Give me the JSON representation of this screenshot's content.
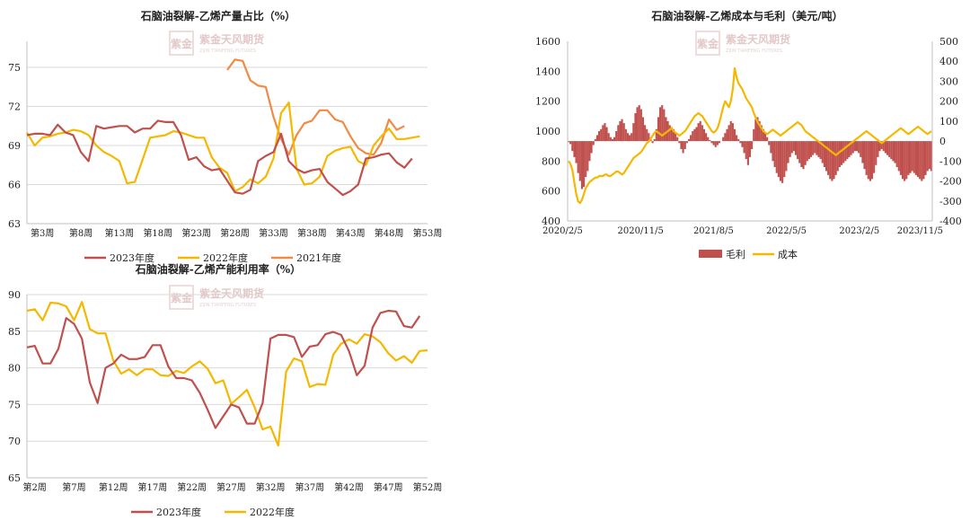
{
  "watermark": {
    "brand": "紫金天风期货",
    "sub": "ZIJIN TIANFENG FUTURES",
    "seal": "紫金"
  },
  "colors": {
    "c2023": "#c0504d",
    "c2022": "#f5b800",
    "c2021": "#f08a45",
    "profit": "#c0504d",
    "cost": "#f5b800",
    "grid": "#d9d9d9"
  },
  "chart_data": [
    {
      "type": "line",
      "title": "石脑油裂解-乙烯产量占比（%）",
      "ylim": [
        63,
        77
      ],
      "yticks": [
        "63",
        "66",
        "69",
        "72",
        "75"
      ],
      "ytick_values": [
        63,
        66,
        69,
        72,
        75
      ],
      "xlim": [
        1,
        53
      ],
      "xtick_labels": [
        "第3周",
        "第8周",
        "第13周",
        "第18周",
        "第23周",
        "第28周",
        "第33周",
        "第38周",
        "第43周",
        "第48周",
        "第53周"
      ],
      "xtick_values": [
        3,
        8,
        13,
        18,
        23,
        28,
        33,
        38,
        43,
        48,
        53
      ],
      "series": [
        {
          "name": "2023年度",
          "color_key": "c2023",
          "x_start": 1,
          "values": [
            69.8,
            69.9,
            69.9,
            69.8,
            70.6,
            70.0,
            69.8,
            68.5,
            67.8,
            70.5,
            70.3,
            70.4,
            70.5,
            70.5,
            70.0,
            70.3,
            70.3,
            70.9,
            70.8,
            70.8,
            69.8,
            67.9,
            68.1,
            67.4,
            67.1,
            67.2,
            66.3,
            65.4,
            65.3,
            65.6,
            67.8,
            68.2,
            68.5,
            69.9,
            67.8,
            67.2,
            66.9,
            67.1,
            67.2,
            66.2,
            65.7,
            65.2,
            65.5,
            66.0,
            68.0,
            68.1,
            68.3,
            68.4,
            67.7,
            67.3,
            68.0
          ]
        },
        {
          "name": "2022年度",
          "color_key": "c2022",
          "x_start": 1,
          "values": [
            70.0,
            69.0,
            69.6,
            69.7,
            69.9,
            70.0,
            70.2,
            70.1,
            69.8,
            69.0,
            68.5,
            68.2,
            67.8,
            66.1,
            66.2,
            67.9,
            69.6,
            69.7,
            69.8,
            70.1,
            70.0,
            69.8,
            69.6,
            69.6,
            68.1,
            67.3,
            66.9,
            65.5,
            65.8,
            66.4,
            66.1,
            66.6,
            68.0,
            71.5,
            72.3,
            67.2,
            66.0,
            66.1,
            66.6,
            68.2,
            68.6,
            68.8,
            68.9,
            67.8,
            67.5,
            69.0,
            69.7,
            70.3,
            69.5,
            69.5,
            69.6,
            69.7
          ]
        },
        {
          "name": "2021年度",
          "color_key": "c2021",
          "x_start": 27,
          "values": [
            74.8,
            75.6,
            75.5,
            74.0,
            73.6,
            73.5,
            71.2,
            69.5,
            68.3,
            69.8,
            70.7,
            70.9,
            71.7,
            71.7,
            71.0,
            70.8,
            69.7,
            68.8,
            68.4,
            68.3,
            69.2,
            71.0,
            70.2,
            70.5
          ]
        }
      ],
      "legend": [
        "2023年度",
        "2022年度",
        "2021年度"
      ],
      "legend_position": "bottom"
    },
    {
      "type": "bar+line",
      "title": "石脑油裂解-乙烯成本与毛利（美元/吨）",
      "left_axis": {
        "label": "成本",
        "ylim": [
          400,
          1600
        ],
        "yticks": [
          "400",
          "600",
          "800",
          "1000",
          "1200",
          "1400",
          "1600"
        ],
        "ytick_values": [
          400,
          600,
          800,
          1000,
          1200,
          1400,
          1600
        ]
      },
      "right_axis": {
        "label": "毛利",
        "ylim": [
          -400,
          500
        ],
        "yticks": [
          "-400",
          "-300",
          "-200",
          "-100",
          "0",
          "100",
          "200",
          "300",
          "400",
          "500"
        ],
        "ytick_values": [
          -400,
          -300,
          -200,
          -100,
          0,
          100,
          200,
          300,
          400,
          500
        ]
      },
      "xtick_labels": [
        "2020/2/5",
        "2020/11/5",
        "2021/8/5",
        "2022/5/5",
        "2023/2/5",
        "2023/11/5"
      ],
      "x_start": "2020/2/5",
      "x_step": "week",
      "series": [
        {
          "name": "毛利",
          "type": "bar",
          "axis": "right",
          "color_key": "profit",
          "values": [
            -5,
            -15,
            -50,
            -80,
            -110,
            -160,
            -200,
            -240,
            -230,
            -180,
            -150,
            -100,
            -60,
            -20,
            10,
            30,
            50,
            60,
            80,
            90,
            70,
            40,
            20,
            10,
            20,
            50,
            80,
            100,
            110,
            90,
            60,
            40,
            30,
            40,
            90,
            140,
            170,
            180,
            160,
            120,
            80,
            60,
            40,
            10,
            -10,
            10,
            60,
            120,
            170,
            180,
            160,
            120,
            100,
            80,
            70,
            60,
            40,
            20,
            -10,
            -40,
            -60,
            -40,
            -10,
            10,
            30,
            50,
            60,
            70,
            90,
            100,
            80,
            60,
            40,
            20,
            5,
            -10,
            -20,
            -30,
            -20,
            -10,
            0,
            20,
            40,
            60,
            80,
            100,
            90,
            60,
            30,
            10,
            -10,
            -30,
            -60,
            -90,
            -120,
            -80,
            -40,
            60,
            110,
            120,
            100,
            80,
            60,
            40,
            20,
            -20,
            -60,
            -100,
            -130,
            -160,
            -180,
            -200,
            -210,
            -180,
            -150,
            -110,
            -80,
            -60,
            -50,
            -70,
            -90,
            -110,
            -130,
            -140,
            -120,
            -100,
            -90,
            -80,
            -70,
            -60,
            -70,
            -80,
            -90,
            -110,
            -130,
            -150,
            -170,
            -190,
            -200,
            -190,
            -170,
            -150,
            -130,
            -120,
            -110,
            -100,
            -90,
            -80,
            -70,
            -60,
            -50,
            -50,
            -60,
            -80,
            -110,
            -140,
            -170,
            -190,
            -200,
            -190,
            -160,
            -120,
            -80,
            -50,
            -40,
            -50,
            -60,
            -70,
            -80,
            -90,
            -100,
            -110,
            -130,
            -150,
            -170,
            -190,
            -200,
            -190,
            -170,
            -160,
            -150,
            -160,
            -170,
            -180,
            -190,
            -200,
            -190,
            -170,
            -150,
            -140,
            -150
          ]
        },
        {
          "name": "成本",
          "type": "line",
          "axis": "left",
          "color_key": "cost",
          "values": [
            800,
            780,
            740,
            660,
            580,
            530,
            520,
            540,
            580,
            620,
            640,
            660,
            670,
            680,
            690,
            690,
            700,
            700,
            700,
            710,
            710,
            700,
            700,
            710,
            720,
            730,
            730,
            720,
            710,
            720,
            740,
            760,
            780,
            800,
            820,
            830,
            840,
            850,
            860,
            880,
            900,
            920,
            930,
            950,
            970,
            990,
            1000,
            990,
            980,
            970,
            980,
            990,
            1000,
            1010,
            1020,
            1000,
            990,
            980,
            970,
            980,
            990,
            1000,
            1020,
            1040,
            1060,
            1080,
            1100,
            1110,
            1120,
            1110,
            1100,
            1080,
            1060,
            1040,
            1020,
            1000,
            990,
            1000,
            1020,
            1060,
            1110,
            1160,
            1200,
            1180,
            1160,
            1200,
            1280,
            1420,
            1360,
            1320,
            1300,
            1280,
            1250,
            1220,
            1200,
            1180,
            1160,
            1120,
            1090,
            1060,
            1040,
            1020,
            1000,
            990,
            980,
            990,
            1000,
            1010,
            1000,
            990,
            980,
            970,
            980,
            990,
            1000,
            1010,
            1020,
            1030,
            1040,
            1050,
            1060,
            1050,
            1040,
            1020,
            1000,
            990,
            980,
            970,
            960,
            950,
            940,
            930,
            920,
            910,
            900,
            890,
            880,
            870,
            860,
            850,
            840,
            850,
            860,
            870,
            880,
            890,
            900,
            910,
            920,
            930,
            940,
            950,
            960,
            970,
            980,
            990,
            1000,
            990,
            980,
            970,
            960,
            950,
            940,
            930,
            920,
            930,
            940,
            950,
            960,
            970,
            980,
            990,
            1000,
            1010,
            1020,
            1010,
            1000,
            990,
            980,
            990,
            1000,
            1010,
            1020,
            1030,
            1020,
            1010,
            1000,
            990,
            980,
            990,
            1000
          ]
        }
      ],
      "legend": [
        "毛利",
        "成本"
      ],
      "legend_position": "bottom"
    },
    {
      "type": "line",
      "title": "石脑油裂解-乙烯产能利用率（%）",
      "ylim": [
        65,
        90
      ],
      "yticks": [
        "65",
        "70",
        "75",
        "80",
        "85",
        "90"
      ],
      "ytick_values": [
        65,
        70,
        75,
        80,
        85,
        90
      ],
      "xlim": [
        1,
        52
      ],
      "xtick_labels": [
        "第2周",
        "第7周",
        "第12周",
        "第17周",
        "第22周",
        "第27周",
        "第32周",
        "第37周",
        "第42周",
        "第47周",
        "第52周"
      ],
      "xtick_values": [
        2,
        7,
        12,
        17,
        22,
        27,
        32,
        37,
        42,
        47,
        52
      ],
      "series": [
        {
          "name": "2023年度",
          "color_key": "c2023",
          "x_start": 1,
          "values": [
            82.8,
            83.0,
            80.6,
            80.6,
            82.6,
            86.8,
            86.0,
            84.0,
            78.0,
            75.2,
            80.0,
            80.6,
            81.8,
            81.2,
            81.2,
            81.5,
            83.1,
            83.1,
            80.2,
            78.6,
            78.6,
            78.3,
            76.6,
            74.3,
            71.8,
            73.4,
            75.0,
            74.6,
            72.4,
            72.4,
            75.2,
            84.0,
            84.5,
            84.5,
            84.2,
            81.5,
            82.9,
            83.1,
            84.6,
            84.9,
            84.5,
            82.3,
            79.0,
            80.3,
            85.5,
            87.5,
            87.8,
            87.7,
            85.7,
            85.5,
            87.1
          ]
        },
        {
          "name": "2022年度",
          "color_key": "c2022",
          "x_start": 1,
          "values": [
            87.8,
            88.0,
            86.5,
            88.9,
            88.8,
            88.4,
            86.5,
            89.0,
            85.3,
            84.7,
            84.7,
            81.0,
            79.2,
            79.8,
            79.0,
            79.8,
            79.8,
            79.0,
            78.9,
            79.6,
            79.3,
            80.2,
            80.9,
            79.9,
            77.9,
            78.3,
            75.1,
            76.0,
            77.0,
            74.6,
            71.6,
            72.0,
            69.4,
            79.5,
            81.3,
            80.9,
            77.4,
            77.8,
            77.7,
            81.8,
            83.3,
            83.9,
            83.3,
            84.6,
            84.3,
            83.5,
            82.0,
            81.0,
            81.6,
            80.7,
            82.3,
            82.4
          ]
        }
      ],
      "legend": [
        "2023年度",
        "2022年度"
      ],
      "legend_position": "bottom"
    }
  ]
}
